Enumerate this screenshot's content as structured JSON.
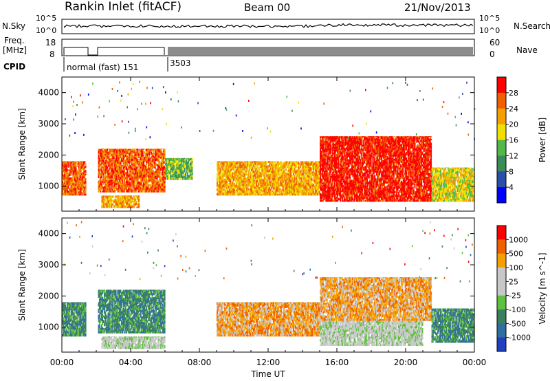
{
  "header": {
    "station": "Rankin Inlet (fitACF)",
    "beam": "Beam 00",
    "date": "21/Nov/2013"
  },
  "top_panels": {
    "nsky_label": "N.Sky",
    "nsearch_label": "N.Search",
    "noise_ticks": [
      "10^5",
      "10^0"
    ],
    "freq_label_1": "Freq.",
    "freq_label_2": "[MHz]",
    "freq_ticks": [
      "18",
      "8"
    ],
    "nave_label": "Nave",
    "nave_ticks": [
      "60",
      "0"
    ],
    "cpid_label": "CPID",
    "cpid_mode_1": "normal (fast) 151",
    "cpid_mode_2": "3503"
  },
  "colors": {
    "power_scale": [
      "#0000ff",
      "#2b4fa6",
      "#3a8a5a",
      "#52b848",
      "#f0e000",
      "#f5a000",
      "#f06000",
      "#ff0000"
    ],
    "velocity_scale": [
      "#1f3fbf",
      "#2f6f9f",
      "#3a8060",
      "#60c040",
      "#c8c8c8",
      "#c8c8c8",
      "#f5a000",
      "#f06000",
      "#ff0000"
    ]
  },
  "chart_data": [
    {
      "type": "heatmap",
      "panel": "power",
      "ylabel": "Slant Range [km]",
      "xlabel": "Time UT",
      "yticks": [
        "1000",
        "2000",
        "3000",
        "4000"
      ],
      "xticks": [
        "00:00",
        "04:00",
        "08:00",
        "12:00",
        "16:00",
        "20:00",
        "00:00"
      ],
      "ylim": [
        200,
        4500
      ],
      "colorbar_label": "Power [dB]",
      "colorbar_ticks": [
        "4",
        "8",
        "12",
        "16",
        "20",
        "24",
        "28"
      ],
      "echo_regions": [
        {
          "t_start": 0.0,
          "t_end": 1.4,
          "r_low": 700,
          "r_high": 1800,
          "level": 6
        },
        {
          "t_start": 2.1,
          "t_end": 6.0,
          "r_low": 800,
          "r_high": 2200,
          "level": 6
        },
        {
          "t_start": 2.3,
          "t_end": 4.5,
          "r_low": 300,
          "r_high": 700,
          "level": 5
        },
        {
          "t_start": 6.0,
          "t_end": 7.6,
          "r_low": 1200,
          "r_high": 1900,
          "level": 3
        },
        {
          "t_start": 9.0,
          "t_end": 15.0,
          "r_low": 700,
          "r_high": 1800,
          "level": 5
        },
        {
          "t_start": 15.0,
          "t_end": 21.5,
          "r_low": 500,
          "r_high": 2600,
          "level": 7
        },
        {
          "t_start": 21.5,
          "t_end": 24.0,
          "r_low": 500,
          "r_high": 1600,
          "level": 4
        }
      ]
    },
    {
      "type": "heatmap",
      "panel": "velocity",
      "ylabel": "Slant Range [km]",
      "xlabel": "Time UT",
      "yticks": [
        "1000",
        "2000",
        "3000",
        "4000"
      ],
      "xticks": [
        "00:00",
        "04:00",
        "08:00",
        "12:00",
        "16:00",
        "20:00",
        "00:00"
      ],
      "ylim": [
        200,
        4500
      ],
      "colorbar_label": "Velocity [m s^-1]",
      "colorbar_ticks": [
        "1000",
        "500",
        "100",
        "25",
        "-25",
        "-100",
        "-500",
        "-1000"
      ],
      "echo_regions": [
        {
          "t_start": 0.0,
          "t_end": 1.4,
          "r_low": 700,
          "r_high": 1800,
          "level": 2
        },
        {
          "t_start": 2.1,
          "t_end": 6.0,
          "r_low": 800,
          "r_high": 2200,
          "level": 2
        },
        {
          "t_start": 2.3,
          "t_end": 6.0,
          "r_low": 300,
          "r_high": 700,
          "level": 4
        },
        {
          "t_start": 9.0,
          "t_end": 15.0,
          "r_low": 700,
          "r_high": 1800,
          "level": 6
        },
        {
          "t_start": 15.0,
          "t_end": 21.5,
          "r_low": 1200,
          "r_high": 2600,
          "level": 6
        },
        {
          "t_start": 15.0,
          "t_end": 21.0,
          "r_low": 400,
          "r_high": 1200,
          "level": 4
        },
        {
          "t_start": 21.5,
          "t_end": 24.0,
          "r_low": 500,
          "r_high": 1600,
          "level": 2
        }
      ]
    }
  ]
}
